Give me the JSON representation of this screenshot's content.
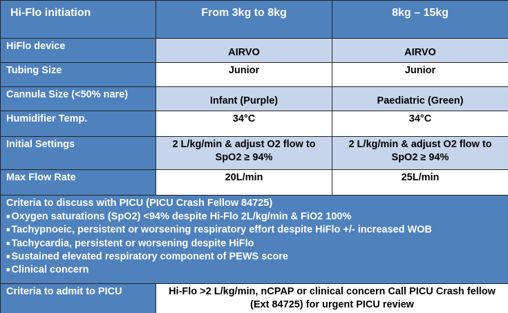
{
  "table": {
    "header": [
      "Hi-Flo initiation",
      "From 3kg to 8kg",
      "8kg – 15kg"
    ],
    "rows": [
      {
        "label": "HiFlo device",
        "values": [
          "AIRVO",
          "AIRVO"
        ]
      },
      {
        "label": "Tubing Size",
        "values": [
          "Junior",
          "Junior"
        ]
      },
      {
        "label": "Cannula Size  (<50% nare)",
        "values": [
          "Infant (Purple)",
          "Paediatric (Green)"
        ]
      },
      {
        "label": "Humidifier Temp.",
        "values": [
          "34°C",
          "34°C"
        ]
      },
      {
        "label": "Initial Settings",
        "values": [
          "2 L/kg/min & adjust O2 flow to SpO2 ≥ 94%",
          "2 L/kg/min & adjust O2 flow to SpO2 ≥ 94%"
        ]
      },
      {
        "label": "Max Flow Rate",
        "values": [
          "20L/min",
          "25L/min"
        ]
      }
    ],
    "criteria": {
      "title": "Criteria to discuss with PICU (PICU Crash Fellow 84725)",
      "items": [
        "Oxygen saturations (SpO2) <94% despite Hi-Flo 2L/kg/min & FiO2 100%",
        "Tachypnoeic, persistent or worsening respiratory effort despite HiFlo +/- increased WOB",
        "Tachycardia, persistent or worsening despite HiFlo",
        "Sustained elevated respiratory component of PEWS score",
        "Clinical concern"
      ]
    },
    "admit": {
      "label": "Criteria to admit to PICU",
      "text": "Hi-Flo >2 L/kg/min, nCPAP or clinical concern Call PICU Crash fellow (Ext 84725) for urgent PICU review"
    }
  }
}
